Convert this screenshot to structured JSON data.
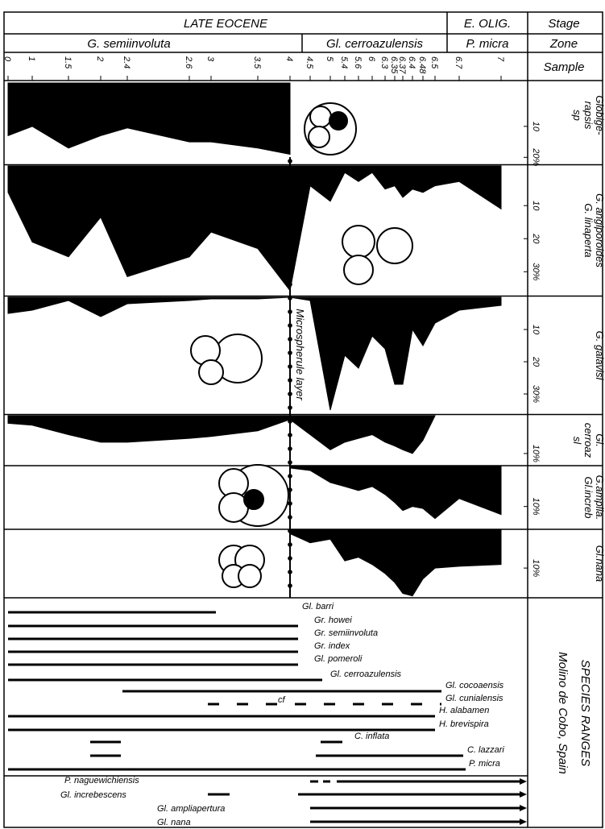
{
  "header": {
    "stage_label": "Stage",
    "zone_label": "Zone",
    "sample_label": "Sample",
    "stages": [
      "LATE EOCENE",
      "E. OLIG."
    ],
    "zones": [
      "G. semiinvoluta",
      "Gl. cerroazulensis",
      "P. micra"
    ]
  },
  "samples": [
    0,
    1,
    1.5,
    2,
    2.4,
    2.6,
    3,
    3.5,
    4,
    4.5,
    5,
    5.4,
    5.6,
    6,
    6.3,
    6.35,
    6.37,
    6.4,
    6.48,
    6.5,
    6.7,
    7
  ],
  "annotation": "Microspherule layer",
  "chart_data": [
    {
      "type": "area",
      "title": [
        "Globige-",
        "rapsis",
        "sp"
      ],
      "color": "#000000",
      "x": [
        0,
        1,
        1.5,
        2,
        2.4,
        2.6,
        3,
        3.5,
        4
      ],
      "values": [
        13,
        10,
        17,
        13,
        10.5,
        15,
        15,
        17,
        19
      ],
      "ylim": [
        -4,
        22
      ],
      "yticks": [
        10,
        {
          "value": 20,
          "label": "20%"
        }
      ]
    },
    {
      "type": "area",
      "title": [
        "G. angiporoides",
        "G. linaperta"
      ],
      "color": "#000000",
      "x": [
        0,
        1,
        1.5,
        2,
        2.4,
        2.6,
        3,
        3.5,
        4,
        4.5,
        5,
        5.4,
        5.6,
        6,
        6.3,
        6.35,
        6.37,
        6.4,
        6.48,
        6.5,
        6.7,
        7
      ],
      "values": [
        6,
        21,
        25.5,
        13.5,
        31.5,
        25.5,
        18,
        23,
        35.7,
        4,
        8.7,
        0,
        2.7,
        0,
        5,
        4,
        7.5,
        5,
        6,
        4,
        2.7,
        11
      ],
      "ylim": [
        -2,
        37
      ],
      "yticks": [
        10,
        20,
        {
          "value": 30,
          "label": "30%"
        }
      ]
    },
    {
      "type": "area",
      "title": [
        "G. galavisi"
      ],
      "color": "#000000",
      "x": [
        0,
        1,
        1.5,
        2,
        2.4,
        2.6,
        3,
        3.5,
        4,
        4.5,
        5,
        5.4,
        5.6,
        6,
        6.3,
        6.35,
        6.37,
        6.4,
        6.48,
        6.5,
        6.7,
        7
      ],
      "values": [
        5,
        4,
        1,
        6,
        2,
        1,
        0.5,
        0.5,
        0,
        1,
        35,
        18,
        22,
        12,
        16,
        27,
        27,
        10,
        15,
        8,
        4,
        2.5
      ],
      "ylim": [
        0,
        36
      ],
      "yticks": [
        10,
        20,
        {
          "value": 30,
          "label": "30%"
        }
      ]
    },
    {
      "type": "area",
      "title": [
        "Gl.",
        "cerroaz",
        "sl"
      ],
      "color": "#000000",
      "x": [
        0,
        1,
        1.5,
        2,
        2.4,
        2.6,
        3,
        3.5,
        4,
        4.5,
        5,
        5.4,
        5.6,
        6,
        6.3,
        6.35,
        6.37,
        6.4,
        6.48,
        6.5
      ],
      "values": [
        2,
        2.5,
        5,
        7,
        7,
        6,
        5.5,
        4,
        1,
        5,
        9,
        7,
        6,
        5,
        7,
        8,
        9,
        10,
        6.5,
        0
      ],
      "ylim": [
        0,
        13
      ],
      "yticks": [
        {
          "value": 10,
          "label": "10%"
        }
      ]
    },
    {
      "type": "area",
      "title": [
        "G.amplia.",
        "Gl.increb"
      ],
      "color": "#000000",
      "x": [
        0,
        1,
        1.5,
        2,
        2.4,
        2.6,
        3,
        3.5,
        4,
        4.5,
        5,
        5.4,
        5.6,
        6,
        6.3,
        6.35,
        6.37,
        6.4,
        6.48,
        6.5,
        6.7,
        7
      ],
      "values": [
        null,
        null,
        null,
        null,
        null,
        null,
        null,
        null,
        0.4,
        1,
        4,
        5,
        6,
        5,
        7,
        9,
        11,
        10,
        10.5,
        13,
        8,
        12
      ],
      "ylim": [
        0,
        15.5
      ],
      "yticks": [
        {
          "value": 10,
          "label": "10%"
        }
      ]
    },
    {
      "type": "area",
      "title": [
        "Gl.nana"
      ],
      "color": "#000000",
      "x": [
        0,
        1,
        1.5,
        2,
        2.4,
        2.6,
        3,
        3.5,
        4,
        4.5,
        5,
        5.4,
        5.6,
        6,
        6.3,
        6.35,
        6.37,
        6.4,
        6.48,
        6.5,
        6.7,
        7
      ],
      "values": [
        null,
        null,
        null,
        null,
        null,
        null,
        null,
        null,
        0.5,
        3,
        2,
        8,
        7,
        9,
        11.5,
        14,
        17,
        17.7,
        13,
        10,
        9.5,
        9
      ],
      "ylim": [
        -0.5,
        18
      ],
      "yticks": [
        {
          "value": 10,
          "label": "10%"
        }
      ]
    }
  ],
  "species_ranges": {
    "title": "SPECIES RANGES",
    "location": "Molino de Cobo, Spain",
    "cf_label": "cf",
    "taxa": [
      "Gl. barri",
      "Gr. howei",
      "Gr. semiinvoluta",
      "Gr. index",
      "Gl. pomeroli",
      "Gl. cerroazulensis",
      "Gl. cocoaensis",
      "Gl. cunialensis",
      "H. alabamen",
      "H. brevispira",
      "C. inflata",
      "C. lazzari",
      "P. micra",
      "P. naguewichiensis",
      "Gl. increbescens",
      "Gl. ampliapertura",
      "Gl. nana"
    ]
  }
}
